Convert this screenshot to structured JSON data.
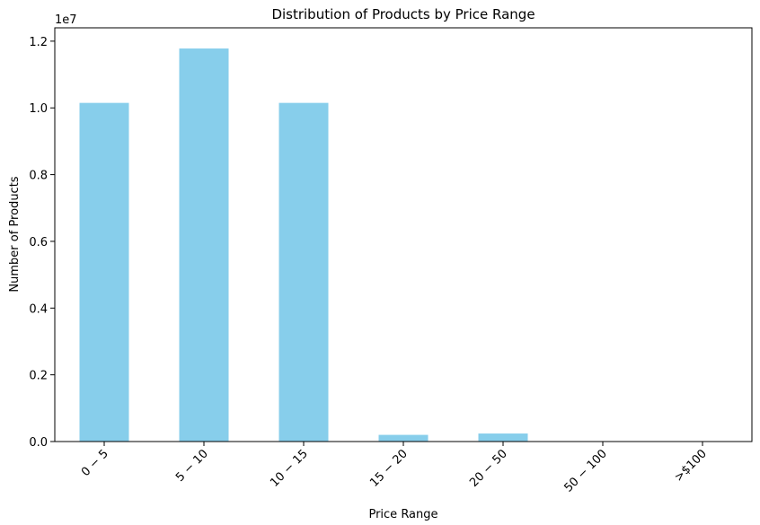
{
  "chart_data": {
    "type": "bar",
    "title": "Distribution of Products by Price Range",
    "xlabel": "Price Range",
    "ylabel": "Number of Products",
    "offset_label": "1e7",
    "categories": [
      "0 − 5",
      "5 − 10",
      "10 − 15",
      "15 − 20",
      "20 − 50",
      "50 − 100",
      ">$100"
    ],
    "values": [
      10150000,
      11780000,
      10150000,
      200000,
      240000,
      0,
      0
    ],
    "ylim": [
      0,
      12400000
    ],
    "yticks": [
      0,
      2000000,
      4000000,
      6000000,
      8000000,
      10000000,
      12000000
    ],
    "ytick_labels": [
      "0.0",
      "0.2",
      "0.4",
      "0.6",
      "0.8",
      "1.0",
      "1.2"
    ],
    "bar_color": "#87ceeb",
    "grid": false,
    "legend": "none"
  }
}
